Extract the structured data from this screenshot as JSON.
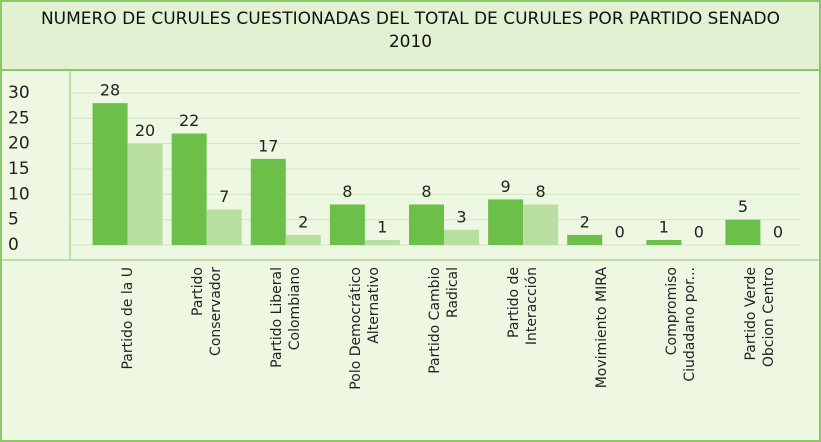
{
  "chart_data": {
    "type": "bar",
    "title": "NUMERO DE CURULES CUESTIONADAS DEL TOTAL DE CURULES POR PARTIDO SENADO 2010",
    "categories": [
      "Partido de la U",
      "Partido Conservador",
      "Partido Liberal Colombiano",
      "Polo Democrático Alternativo",
      "Partido Cambio Radical",
      "Partido de Interacción",
      "Movimiento MIRA",
      "Compromiso Ciudadano por...",
      "Partido Verde Obcion Centro"
    ],
    "series": [
      {
        "color": "#6cc04a",
        "values": [
          28,
          22,
          17,
          8,
          8,
          9,
          2,
          1,
          5
        ]
      },
      {
        "color": "#b9dfa0",
        "values": [
          20,
          7,
          2,
          1,
          3,
          8,
          0,
          0,
          0
        ]
      }
    ],
    "ylim": [
      0,
      30
    ],
    "yticks": [
      0,
      5,
      10,
      15,
      20,
      25,
      30
    ],
    "grid": true
  }
}
